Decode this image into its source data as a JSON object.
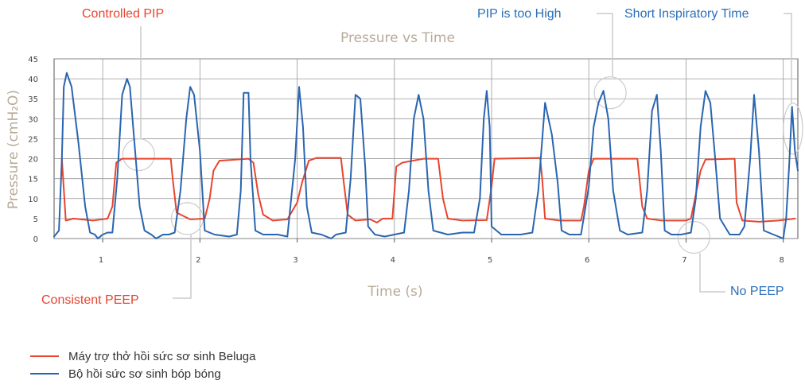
{
  "chart_data": {
    "type": "line",
    "title": "Pressure vs Time",
    "xlabel": "Time (s)",
    "ylabel": "Pressure (cmH₂O)",
    "xlim": [
      0.5,
      8.15
    ],
    "ylim": [
      0,
      45
    ],
    "x_ticks": [
      "1",
      "2",
      "3",
      "4",
      "5",
      "6",
      "7",
      "8"
    ],
    "y_ticks": [
      "0",
      "5",
      "10",
      "15",
      "20",
      "25",
      "30",
      "35",
      "40",
      "45"
    ],
    "grid": true,
    "legend_position": "bottom-left",
    "series": [
      {
        "name": "Máy trợ thở hồi sức sơ sinh Beluga",
        "color": "#e8442e",
        "points": [
          [
            0.58,
            20
          ],
          [
            0.62,
            4.5
          ],
          [
            0.7,
            5
          ],
          [
            0.9,
            4.5
          ],
          [
            1.05,
            5
          ],
          [
            1.1,
            8
          ],
          [
            1.14,
            19
          ],
          [
            1.2,
            20
          ],
          [
            1.7,
            20
          ],
          [
            1.72,
            15
          ],
          [
            1.76,
            6.5
          ],
          [
            1.9,
            4.8
          ],
          [
            2.05,
            5
          ],
          [
            2.1,
            10
          ],
          [
            2.14,
            17
          ],
          [
            2.2,
            19.5
          ],
          [
            2.5,
            20
          ],
          [
            2.55,
            19
          ],
          [
            2.6,
            11
          ],
          [
            2.65,
            6
          ],
          [
            2.75,
            4.5
          ],
          [
            2.9,
            4.8
          ],
          [
            3.0,
            9
          ],
          [
            3.05,
            14
          ],
          [
            3.12,
            19.5
          ],
          [
            3.2,
            20.2
          ],
          [
            3.45,
            20.2
          ],
          [
            3.48,
            14
          ],
          [
            3.52,
            6
          ],
          [
            3.6,
            4.5
          ],
          [
            3.75,
            4.8
          ],
          [
            3.82,
            4
          ],
          [
            3.88,
            5
          ],
          [
            3.98,
            5
          ],
          [
            4.02,
            18
          ],
          [
            4.08,
            19
          ],
          [
            4.3,
            20
          ],
          [
            4.45,
            20
          ],
          [
            4.5,
            10
          ],
          [
            4.55,
            5
          ],
          [
            4.7,
            4.5
          ],
          [
            4.95,
            4.6
          ],
          [
            5.0,
            13
          ],
          [
            5.03,
            20
          ],
          [
            5.5,
            20.2
          ],
          [
            5.52,
            15
          ],
          [
            5.55,
            5
          ],
          [
            5.7,
            4.5
          ],
          [
            5.92,
            4.5
          ],
          [
            5.95,
            8
          ],
          [
            6.0,
            17
          ],
          [
            6.05,
            20
          ],
          [
            6.5,
            20
          ],
          [
            6.55,
            8
          ],
          [
            6.6,
            5
          ],
          [
            6.75,
            4.5
          ],
          [
            7.0,
            4.5
          ],
          [
            7.05,
            5
          ],
          [
            7.1,
            11
          ],
          [
            7.15,
            17
          ],
          [
            7.2,
            19.8
          ],
          [
            7.5,
            20
          ],
          [
            7.52,
            9
          ],
          [
            7.58,
            4.5
          ],
          [
            7.75,
            4.2
          ],
          [
            7.95,
            4.5
          ],
          [
            8.05,
            4.8
          ],
          [
            8.12,
            5
          ]
        ]
      },
      {
        "name": "Bộ hồi sức sơ sinh bóp bóng",
        "color": "#2a65b0",
        "points": [
          [
            0.5,
            0.5
          ],
          [
            0.55,
            2
          ],
          [
            0.58,
            20
          ],
          [
            0.6,
            38
          ],
          [
            0.63,
            41.5
          ],
          [
            0.68,
            38
          ],
          [
            0.75,
            24
          ],
          [
            0.82,
            8
          ],
          [
            0.87,
            1.5
          ],
          [
            0.92,
            1
          ],
          [
            0.95,
            0
          ],
          [
            1.0,
            1
          ],
          [
            1.05,
            1.5
          ],
          [
            1.1,
            1.5
          ],
          [
            1.15,
            15
          ],
          [
            1.2,
            36
          ],
          [
            1.25,
            40
          ],
          [
            1.28,
            38
          ],
          [
            1.32,
            26
          ],
          [
            1.38,
            8
          ],
          [
            1.43,
            2
          ],
          [
            1.5,
            1
          ],
          [
            1.55,
            0
          ],
          [
            1.62,
            1
          ],
          [
            1.68,
            1
          ],
          [
            1.74,
            1.5
          ],
          [
            1.8,
            12
          ],
          [
            1.86,
            30
          ],
          [
            1.9,
            38
          ],
          [
            1.94,
            36
          ],
          [
            2.0,
            22
          ],
          [
            2.05,
            2
          ],
          [
            2.15,
            1
          ],
          [
            2.3,
            0.5
          ],
          [
            2.38,
            1
          ],
          [
            2.42,
            12
          ],
          [
            2.45,
            36.5
          ],
          [
            2.5,
            36.5
          ],
          [
            2.52,
            20
          ],
          [
            2.57,
            2
          ],
          [
            2.65,
            1
          ],
          [
            2.8,
            1
          ],
          [
            2.9,
            0.5
          ],
          [
            2.98,
            20
          ],
          [
            3.02,
            38
          ],
          [
            3.06,
            28
          ],
          [
            3.1,
            8
          ],
          [
            3.15,
            1.5
          ],
          [
            3.25,
            1
          ],
          [
            3.35,
            0
          ],
          [
            3.4,
            1
          ],
          [
            3.5,
            1.5
          ],
          [
            3.55,
            15
          ],
          [
            3.6,
            36
          ],
          [
            3.65,
            35
          ],
          [
            3.7,
            18
          ],
          [
            3.73,
            3
          ],
          [
            3.8,
            1
          ],
          [
            3.9,
            0.5
          ],
          [
            4.0,
            1
          ],
          [
            4.1,
            1.5
          ],
          [
            4.15,
            12
          ],
          [
            4.2,
            30
          ],
          [
            4.25,
            36
          ],
          [
            4.3,
            30
          ],
          [
            4.35,
            12
          ],
          [
            4.4,
            2
          ],
          [
            4.55,
            1
          ],
          [
            4.7,
            1.5
          ],
          [
            4.82,
            1.5
          ],
          [
            4.88,
            10
          ],
          [
            4.92,
            30
          ],
          [
            4.95,
            37
          ],
          [
            4.98,
            28
          ],
          [
            5.0,
            3
          ],
          [
            5.1,
            1
          ],
          [
            5.3,
            1
          ],
          [
            5.42,
            1.5
          ],
          [
            5.48,
            12
          ],
          [
            5.55,
            34
          ],
          [
            5.62,
            26
          ],
          [
            5.68,
            14
          ],
          [
            5.72,
            2
          ],
          [
            5.8,
            1
          ],
          [
            5.92,
            1
          ],
          [
            6.0,
            13
          ],
          [
            6.05,
            28
          ],
          [
            6.1,
            34
          ],
          [
            6.15,
            37
          ],
          [
            6.2,
            30
          ],
          [
            6.25,
            12
          ],
          [
            6.32,
            2
          ],
          [
            6.4,
            1
          ],
          [
            6.55,
            1.5
          ],
          [
            6.6,
            12
          ],
          [
            6.65,
            32
          ],
          [
            6.7,
            36
          ],
          [
            6.74,
            22
          ],
          [
            6.78,
            2
          ],
          [
            6.85,
            1
          ],
          [
            6.95,
            1
          ],
          [
            7.05,
            1.5
          ],
          [
            7.1,
            10
          ],
          [
            7.15,
            28
          ],
          [
            7.2,
            37
          ],
          [
            7.25,
            34
          ],
          [
            7.3,
            20
          ],
          [
            7.35,
            5
          ],
          [
            7.45,
            1
          ],
          [
            7.55,
            1
          ],
          [
            7.6,
            3
          ],
          [
            7.66,
            20
          ],
          [
            7.7,
            36
          ],
          [
            7.75,
            22
          ],
          [
            7.8,
            2
          ],
          [
            7.9,
            1
          ],
          [
            8.0,
            0
          ],
          [
            8.03,
            5
          ],
          [
            8.06,
            18
          ],
          [
            8.09,
            33
          ],
          [
            8.12,
            22
          ],
          [
            8.15,
            17
          ]
        ]
      }
    ],
    "annotations": [
      {
        "label": "Controlled PIP",
        "color": "#e8442e"
      },
      {
        "label": "PIP is too High",
        "color": "#2a6fbb"
      },
      {
        "label": "Short Inspiratory Time",
        "color": "#2a6fbb"
      },
      {
        "label": "Consistent PEEP",
        "color": "#e8442e"
      },
      {
        "label": "No PEEP",
        "color": "#2a6fbb"
      }
    ]
  }
}
